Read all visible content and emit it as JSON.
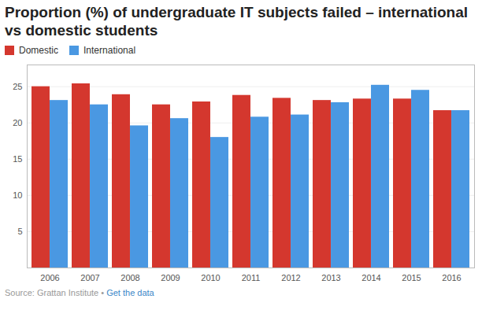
{
  "chart_data": {
    "type": "bar",
    "title": "Proportion (%) of undergraduate IT subjects failed – international vs domestic students",
    "source": "Source: Grattan Institute • Get the data",
    "categories": [
      "2006",
      "2007",
      "2008",
      "2009",
      "2010",
      "2011",
      "2012",
      "2013",
      "2014",
      "2015",
      "2016"
    ],
    "series": [
      {
        "name": "Domestic",
        "color": "#d4372e",
        "values": [
          25.0,
          25.4,
          23.9,
          22.5,
          22.9,
          23.8,
          23.4,
          23.1,
          23.3,
          23.3,
          21.7
        ]
      },
      {
        "name": "International",
        "color": "#4a98e2",
        "values": [
          23.1,
          22.5,
          19.6,
          20.6,
          18.0,
          20.8,
          21.1,
          22.8,
          25.2,
          24.5,
          21.7
        ]
      }
    ],
    "ylim": [
      0,
      28
    ],
    "yticks": [
      5,
      10,
      15,
      20,
      25
    ],
    "grid": true,
    "legend": "top-left"
  }
}
